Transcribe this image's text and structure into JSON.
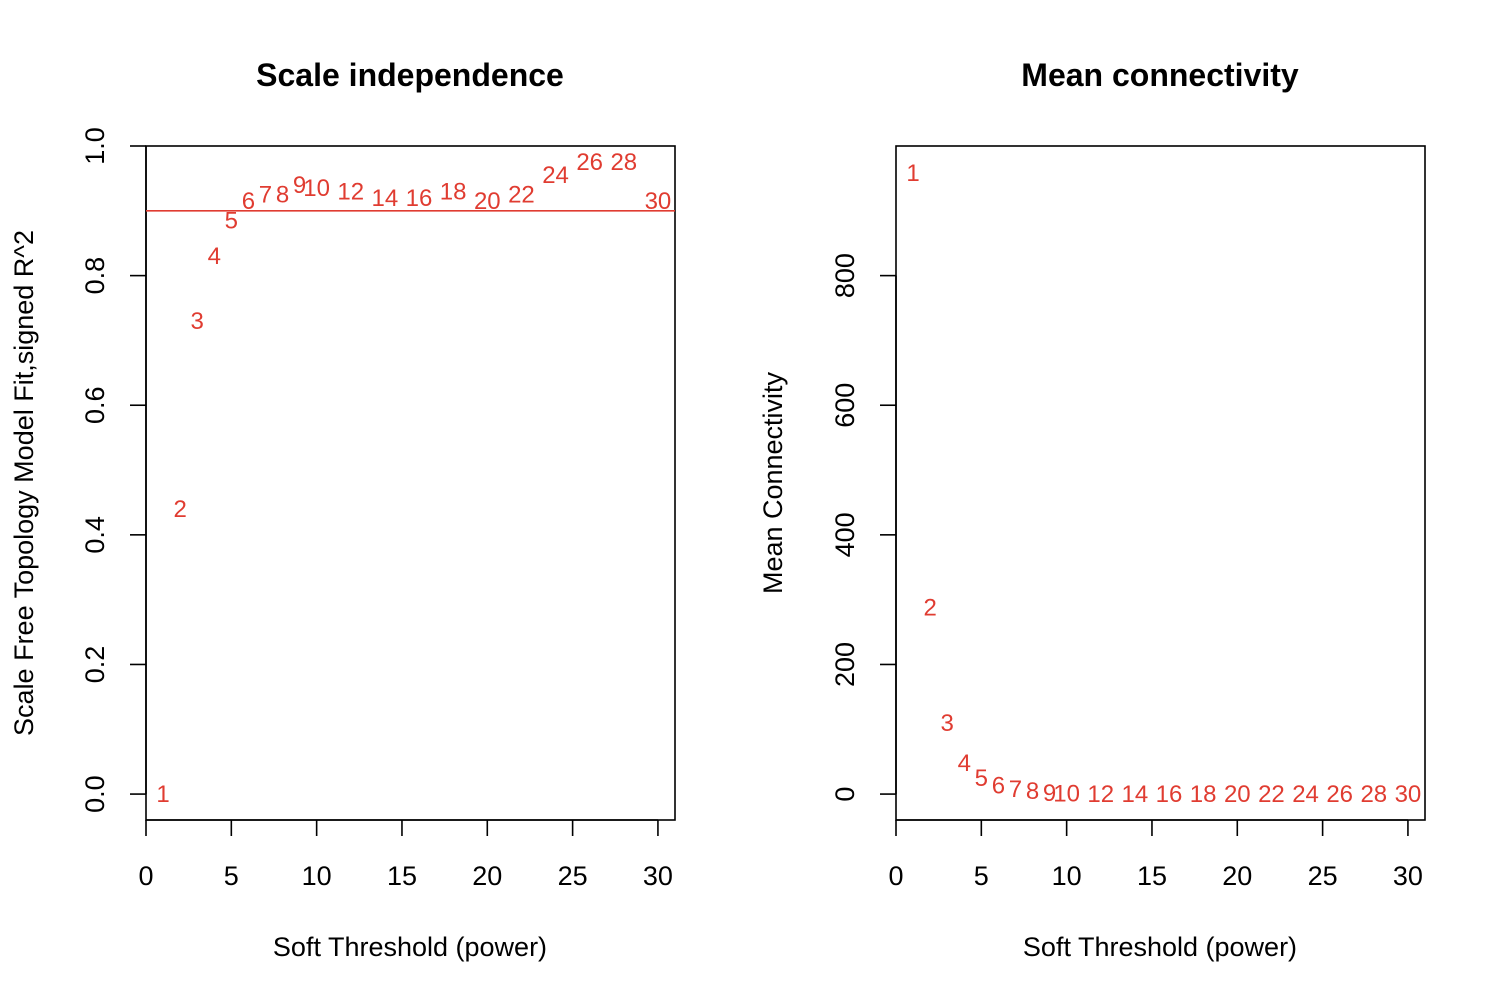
{
  "chart_data": [
    {
      "type": "scatter",
      "title": "Scale independence",
      "xlabel": "Soft Threshold (power)",
      "ylabel": "Scale Free Topology Model Fit,signed R^2",
      "xlim": [
        0,
        31
      ],
      "ylim": [
        -0.04,
        1.0
      ],
      "x_ticks": [
        0,
        5,
        10,
        15,
        20,
        25,
        30
      ],
      "x_tick_labels": [
        "0",
        "5",
        "10",
        "15",
        "20",
        "25",
        "30"
      ],
      "y_ticks": [
        0.0,
        0.2,
        0.4,
        0.6,
        0.8,
        1.0
      ],
      "y_tick_labels": [
        "0.0",
        "0.2",
        "0.4",
        "0.6",
        "0.8",
        "1.0"
      ],
      "y_tick_rotation": "vertical",
      "marker": "text-label",
      "color": "#e03c31",
      "x": [
        1,
        2,
        3,
        4,
        5,
        6,
        7,
        8,
        9,
        10,
        12,
        14,
        16,
        18,
        20,
        22,
        24,
        26,
        28,
        30
      ],
      "labels": [
        "1",
        "2",
        "3",
        "4",
        "5",
        "6",
        "7",
        "8",
        "9",
        "10",
        "12",
        "14",
        "16",
        "18",
        "20",
        "22",
        "24",
        "26",
        "28",
        "30"
      ],
      "y": [
        0.0,
        0.44,
        0.73,
        0.83,
        0.885,
        0.915,
        0.925,
        0.925,
        0.94,
        0.935,
        0.93,
        0.92,
        0.92,
        0.93,
        0.915,
        0.925,
        0.955,
        0.975,
        0.975,
        0.915
      ],
      "hline": {
        "y": 0.9,
        "color": "#e03c31"
      },
      "grid": false,
      "legend": "none"
    },
    {
      "type": "scatter",
      "title": "Mean connectivity",
      "xlabel": "Soft Threshold (power)",
      "ylabel": "Mean Connectivity",
      "xlim": [
        0,
        31
      ],
      "ylim": [
        -40,
        1000
      ],
      "x_ticks": [
        0,
        5,
        10,
        15,
        20,
        25,
        30
      ],
      "x_tick_labels": [
        "0",
        "5",
        "10",
        "15",
        "20",
        "25",
        "30"
      ],
      "y_ticks": [
        0,
        200,
        400,
        600,
        800
      ],
      "y_tick_labels": [
        "0",
        "200",
        "400",
        "600",
        "800"
      ],
      "y_tick_rotation": "vertical",
      "marker": "text-label",
      "color": "#e03c31",
      "x": [
        1,
        2,
        3,
        4,
        5,
        6,
        7,
        8,
        9,
        10,
        12,
        14,
        16,
        18,
        20,
        22,
        24,
        26,
        28,
        30
      ],
      "labels": [
        "1",
        "2",
        "3",
        "4",
        "5",
        "6",
        "7",
        "8",
        "9",
        "10",
        "12",
        "14",
        "16",
        "18",
        "20",
        "22",
        "24",
        "26",
        "28",
        "30"
      ],
      "y": [
        958,
        288,
        110,
        48,
        25,
        13,
        8,
        5,
        2,
        1,
        0,
        0,
        0,
        0,
        0,
        0,
        0,
        0,
        0,
        0
      ],
      "grid": false,
      "legend": "none"
    }
  ]
}
